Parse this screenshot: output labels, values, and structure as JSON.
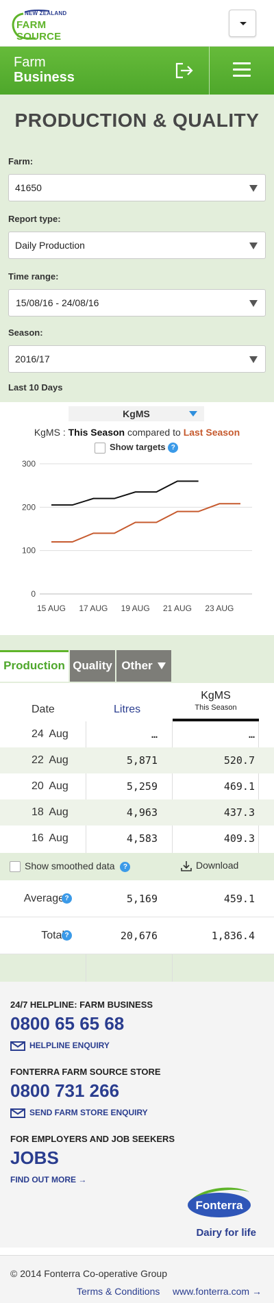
{
  "brand": {
    "logo_top": "NEW ZEALAND",
    "logo_main": "FARM SOURCE"
  },
  "header": {
    "title_line1": "Farm",
    "title_line2": "Business",
    "logout_icon": "logout-icon",
    "menu_icon": "hamburger-menu-icon"
  },
  "page": {
    "title": "PRODUCTION & QUALITY"
  },
  "filters": {
    "farm_label": "Farm:",
    "farm_value": "41650",
    "report_label": "Report type:",
    "report_value": "Daily Production",
    "time_label": "Time range:",
    "time_value": "15/08/16 - 24/08/16",
    "season_label": "Season:",
    "season_value": "2016/17",
    "range_note": "Last 10 Days"
  },
  "chart_controls": {
    "metric_select": "KgMS",
    "compare_prefix": "KgMS : ",
    "this_season": "This Season",
    "compared_to": " compared to ",
    "last_season": "Last Season",
    "show_targets": "Show targets",
    "this_season_color": "#111111",
    "last_season_color": "#c65a2e"
  },
  "chart_data": {
    "type": "line",
    "x": [
      "15 AUG",
      "16 AUG",
      "17 AUG",
      "18 AUG",
      "19 AUG",
      "20 AUG",
      "21 AUG",
      "22 AUG",
      "23 AUG",
      "24 AUG"
    ],
    "x_tick_labels": [
      "15 AUG",
      "17 AUG",
      "19 AUG",
      "21 AUG",
      "23 AUG"
    ],
    "series": [
      {
        "name": "This Season",
        "color": "#111111",
        "values": [
          205,
          205,
          220,
          220,
          235,
          235,
          260,
          260,
          null,
          null
        ]
      },
      {
        "name": "Last Season",
        "color": "#c65a2e",
        "values": [
          120,
          120,
          140,
          140,
          165,
          165,
          190,
          190,
          208,
          208
        ]
      }
    ],
    "yticks": [
      0,
      100,
      200,
      300
    ],
    "ylim": [
      0,
      300
    ],
    "grid": true
  },
  "tabs": [
    {
      "label": "Production",
      "active": true
    },
    {
      "label": "Quality",
      "active": false
    },
    {
      "label": "Other",
      "active": false
    }
  ],
  "table": {
    "col_date": "Date",
    "col_litres": "Litres",
    "col_kgms": "KgMS",
    "col_kgms_sub": "This Season",
    "rows": [
      {
        "date": "24 Aug",
        "litres": "…",
        "kgms": "…"
      },
      {
        "date": "22 Aug",
        "litres": "5,871",
        "kgms": "520.7"
      },
      {
        "date": "20 Aug",
        "litres": "5,259",
        "kgms": "469.1"
      },
      {
        "date": "18 Aug",
        "litres": "4,963",
        "kgms": "437.3"
      },
      {
        "date": "16 Aug",
        "litres": "4,583",
        "kgms": "409.3"
      }
    ],
    "smoothed_label": "Show smoothed data",
    "download_label": "Download",
    "average_label": "Average",
    "average_litres": "5,169",
    "average_kgms": "459.1",
    "total_label": "Total",
    "total_litres": "20,676",
    "total_kgms": "1,836.4"
  },
  "footer": {
    "helpline_heading": "24/7 HELPLINE: FARM BUSINESS",
    "helpline_phone": "0800 65 65 68",
    "helpline_link": "HELPLINE ENQUIRY",
    "store_heading": "FONTERRA FARM SOURCE STORE",
    "store_phone": "0800 731 266",
    "store_link": "SEND FARM STORE ENQUIRY",
    "jobs_heading": "FOR EMPLOYERS AND JOB SEEKERS",
    "jobs_big": "JOBS",
    "jobs_link": "FIND OUT MORE",
    "fonterra_logo": "Fonterra",
    "fonterra_tagline": "Dairy for life",
    "copyright": "© 2014 Fonterra Co-operative Group",
    "terms": "Terms & Conditions",
    "site": "www.fonterra.com"
  }
}
